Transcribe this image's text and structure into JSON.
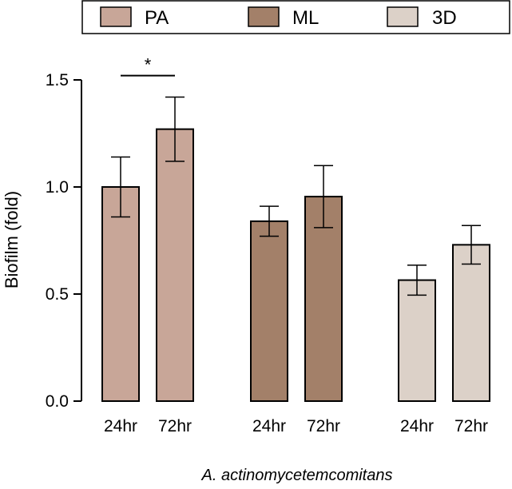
{
  "chart_data": {
    "type": "bar",
    "title": "",
    "xlabel": "A. actinomycetemcomitans",
    "ylabel": "Biofilm (fold)",
    "ylim": [
      0,
      1.5
    ],
    "yticks": [
      0.0,
      0.5,
      1.0,
      1.5
    ],
    "ytick_labels": [
      "0.0",
      "0.5",
      "1.0",
      "1.5"
    ],
    "legend": {
      "position": "top",
      "entries": [
        "PA",
        "ML",
        "3D"
      ]
    },
    "categories": [
      "24hr",
      "72hr"
    ],
    "series": [
      {
        "name": "PA",
        "color": "#c8a698",
        "values": [
          1.0,
          1.27
        ],
        "errors": [
          0.14,
          0.15
        ]
      },
      {
        "name": "ML",
        "color": "#a38069",
        "values": [
          0.84,
          0.955
        ],
        "errors": [
          0.07,
          0.145
        ]
      },
      {
        "name": "3D",
        "color": "#dcd1c8",
        "values": [
          0.565,
          0.73
        ],
        "errors": [
          0.07,
          0.09
        ]
      }
    ],
    "annotations": [
      {
        "text": "*",
        "series": "PA",
        "from": "24hr",
        "to": "72hr",
        "y": 1.52
      }
    ]
  }
}
